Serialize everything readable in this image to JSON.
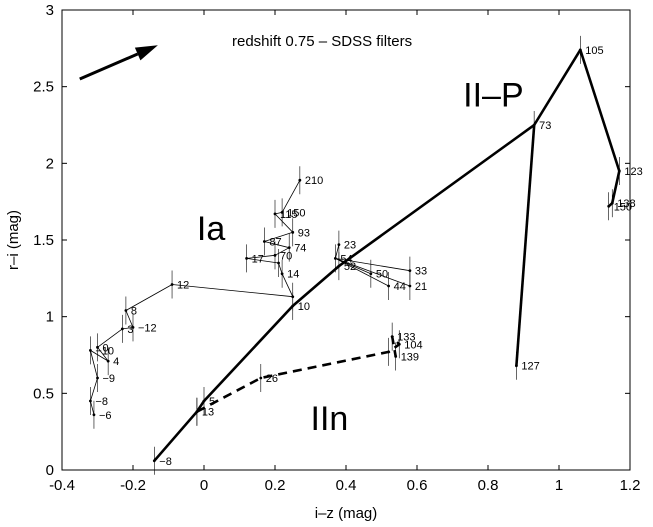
{
  "chart_data": {
    "type": "line",
    "title": "",
    "annotation": "redshift 0.75 – SDSS filters",
    "xlabel": "i–z (mag)",
    "ylabel": "r–i (mag)",
    "xlim": [
      -0.4,
      1.2
    ],
    "ylim": [
      0,
      3
    ],
    "xticks": [
      "-0.4",
      "-0.2",
      "0",
      "0.2",
      "0.4",
      "0.6",
      "0.8",
      "1",
      "1.2"
    ],
    "xtick_values": [
      -0.4,
      -0.2,
      0,
      0.2,
      0.4,
      0.6,
      0.8,
      1,
      1.2
    ],
    "yticks": [
      "0",
      "0.5",
      "1",
      "1.5",
      "2",
      "2.5",
      "3"
    ],
    "ytick_values": [
      0,
      0.5,
      1,
      1.5,
      2,
      2.5,
      3
    ],
    "grid": false,
    "arrow": {
      "from": [
        -0.35,
        2.55
      ],
      "to": [
        -0.13,
        2.77
      ]
    },
    "series": [
      {
        "name": "II-P",
        "line_style": "thick-solid",
        "points": [
          {
            "x": -0.14,
            "y": 0.06,
            "label": "−8"
          },
          {
            "x": -0.02,
            "y": 0.38,
            "label": "13"
          },
          {
            "x": 0.0,
            "y": 0.45,
            "label": "5"
          },
          {
            "x": 0.25,
            "y": 1.07,
            "label": "10"
          },
          {
            "x": 0.38,
            "y": 1.33,
            "label": "52"
          },
          {
            "x": 0.93,
            "y": 2.25,
            "label": "73"
          },
          {
            "x": 1.06,
            "y": 2.74,
            "label": "105"
          },
          {
            "x": 1.17,
            "y": 1.95,
            "label": "123"
          },
          {
            "x": 1.15,
            "y": 1.74,
            "label": "138"
          },
          {
            "x": 1.14,
            "y": 1.72,
            "label": "150"
          }
        ],
        "branch": [
          {
            "x": 0.93,
            "y": 2.25,
            "label": ""
          },
          {
            "x": 0.88,
            "y": 0.68,
            "label": "127"
          }
        ]
      },
      {
        "name": "IIn",
        "line_style": "thick-dashed",
        "points": [
          {
            "x": -0.02,
            "y": 0.38,
            "label": ""
          },
          {
            "x": 0.16,
            "y": 0.6,
            "label": "26"
          },
          {
            "x": 0.52,
            "y": 0.77,
            "label": ""
          },
          {
            "x": 0.55,
            "y": 0.82,
            "label": "104"
          },
          {
            "x": 0.53,
            "y": 0.87,
            "label": "133"
          },
          {
            "x": 0.54,
            "y": 0.74,
            "label": "139"
          }
        ]
      },
      {
        "name": "Ia",
        "line_style": "thin-solid",
        "points": [
          {
            "x": -0.31,
            "y": 0.36,
            "label": "−6"
          },
          {
            "x": -0.32,
            "y": 0.45,
            "label": "−8"
          },
          {
            "x": -0.3,
            "y": 0.6,
            "label": "−9"
          },
          {
            "x": -0.32,
            "y": 0.78,
            "label": "−10"
          },
          {
            "x": -0.27,
            "y": 0.71,
            "label": "4"
          },
          {
            "x": -0.3,
            "y": 0.8,
            "label": "0"
          },
          {
            "x": -0.23,
            "y": 0.92,
            "label": "3"
          },
          {
            "x": -0.2,
            "y": 0.93,
            "label": "−12"
          },
          {
            "x": -0.22,
            "y": 1.04,
            "label": "8"
          },
          {
            "x": -0.09,
            "y": 1.21,
            "label": "12"
          },
          {
            "x": 0.25,
            "y": 1.13,
            "label": ""
          },
          {
            "x": 0.22,
            "y": 1.28,
            "label": "14"
          },
          {
            "x": 0.21,
            "y": 1.35,
            "label": ""
          },
          {
            "x": 0.12,
            "y": 1.38,
            "label": "17"
          },
          {
            "x": 0.2,
            "y": 1.4,
            "label": "70"
          },
          {
            "x": 0.24,
            "y": 1.45,
            "label": "74"
          },
          {
            "x": 0.17,
            "y": 1.49,
            "label": "87"
          },
          {
            "x": 0.25,
            "y": 1.55,
            "label": "93"
          },
          {
            "x": 0.2,
            "y": 1.67,
            "label": "115"
          },
          {
            "x": 0.22,
            "y": 1.68,
            "label": "150"
          },
          {
            "x": 0.27,
            "y": 1.89,
            "label": "210"
          }
        ],
        "side": [
          {
            "x": 0.37,
            "y": 1.38,
            "label": "54"
          },
          {
            "x": 0.38,
            "y": 1.47,
            "label": "23"
          },
          {
            "x": 0.47,
            "y": 1.28,
            "label": "50"
          },
          {
            "x": 0.52,
            "y": 1.2,
            "label": "44"
          },
          {
            "x": 0.58,
            "y": 1.3,
            "label": "33"
          },
          {
            "x": 0.58,
            "y": 1.2,
            "label": "21"
          }
        ]
      }
    ],
    "series_labels": [
      {
        "text": "Ia",
        "x": -0.02,
        "y": 1.5
      },
      {
        "text": "II–P",
        "x": 0.73,
        "y": 2.37
      },
      {
        "text": "IIn",
        "x": 0.3,
        "y": 0.26
      }
    ]
  }
}
